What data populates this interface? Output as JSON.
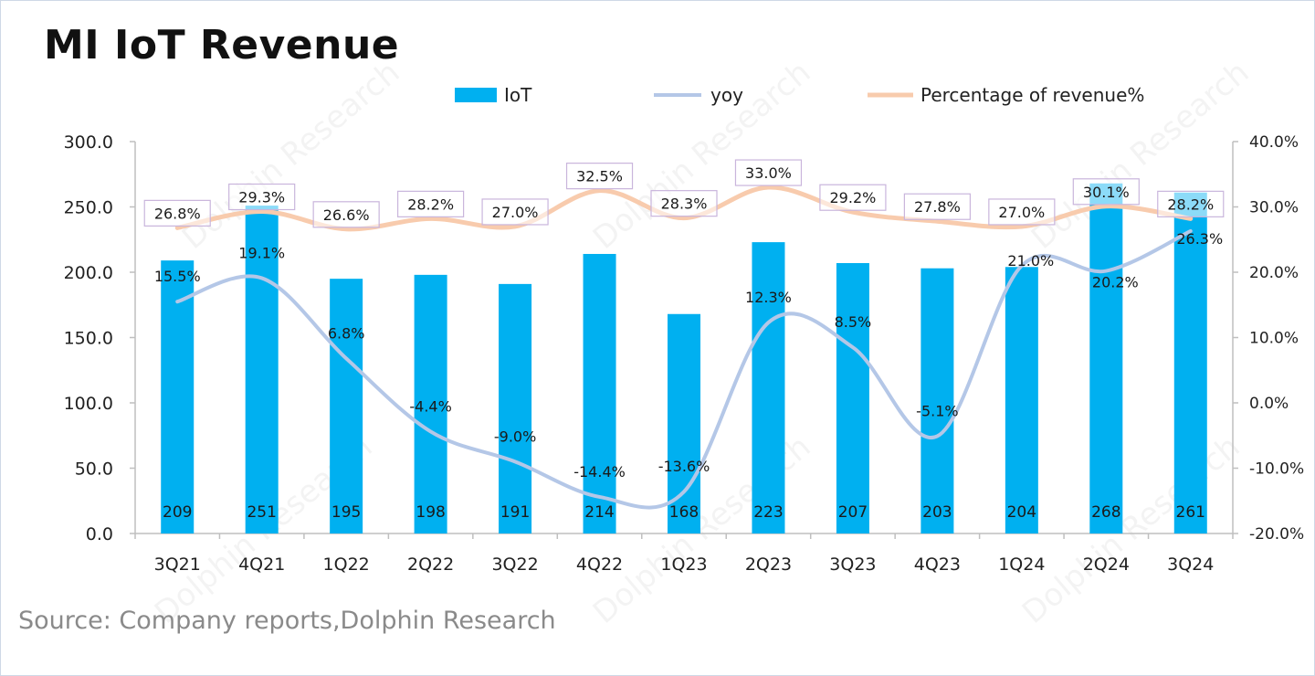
{
  "title": "MI IoT Revenue",
  "source": "Source: Company reports,Dolphin Research",
  "watermark": "Dolphin Research",
  "chart_data": {
    "type": "bar",
    "categories": [
      "3Q21",
      "4Q21",
      "1Q22",
      "2Q22",
      "3Q22",
      "4Q22",
      "1Q23",
      "2Q23",
      "3Q23",
      "4Q23",
      "1Q24",
      "2Q24",
      "3Q24"
    ],
    "series": [
      {
        "name": "IoT",
        "axis": "left",
        "kind": "bar",
        "color": "#00b0f0",
        "values": [
          209,
          251,
          195,
          198,
          191,
          214,
          168,
          223,
          207,
          203,
          204,
          268,
          261
        ],
        "labels": [
          "209",
          "251",
          "195",
          "198",
          "191",
          "214",
          "168",
          "223",
          "207",
          "203",
          "204",
          "268",
          "261"
        ]
      },
      {
        "name": "yoy",
        "axis": "right",
        "kind": "line",
        "color": "#b4c7e7",
        "values": [
          15.5,
          19.1,
          6.8,
          -4.4,
          -9.0,
          -14.4,
          -13.6,
          12.3,
          8.5,
          -5.1,
          21.0,
          20.2,
          26.3
        ],
        "labels": [
          "15.5%",
          "19.1%",
          "6.8%",
          "-4.4%",
          "-9.0%",
          "-14.4%",
          "-13.6%",
          "12.3%",
          "8.5%",
          "-5.1%",
          "21.0%",
          "20.2%",
          "26.3%"
        ]
      },
      {
        "name": "Percentage of revenue%",
        "axis": "right",
        "kind": "line",
        "color": "#f8cbad",
        "values": [
          26.8,
          29.3,
          26.6,
          28.2,
          27.0,
          32.5,
          28.3,
          33.0,
          29.2,
          27.8,
          27.0,
          30.1,
          28.2
        ],
        "labels": [
          "26.8%",
          "29.3%",
          "26.6%",
          "28.2%",
          "27.0%",
          "32.5%",
          "28.3%",
          "33.0%",
          "29.2%",
          "27.8%",
          "27.0%",
          "30.1%",
          "28.2%"
        ]
      }
    ],
    "y_left": {
      "min": 0,
      "max": 300,
      "ticks": [
        "0.0",
        "50.0",
        "100.0",
        "150.0",
        "200.0",
        "250.0",
        "300.0"
      ]
    },
    "y_right": {
      "min": -20,
      "max": 40,
      "ticks": [
        "-20.0%",
        "-10.0%",
        "0.0%",
        "10.0%",
        "20.0%",
        "30.0%",
        "40.0%"
      ]
    },
    "legend": [
      "IoT",
      "yoy",
      "Percentage of revenue%"
    ],
    "legend_position": "top"
  }
}
